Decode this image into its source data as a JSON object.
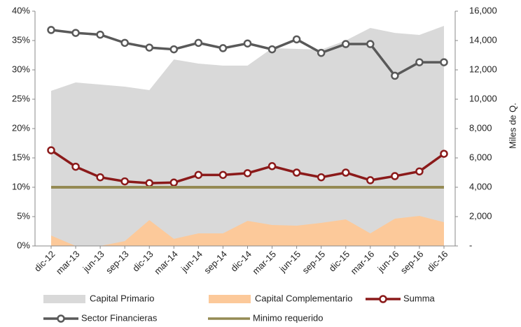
{
  "chart_data": {
    "type": "combo",
    "categories": [
      "dic-12",
      "mar-13",
      "jun-13",
      "sep-13",
      "dic-13",
      "mar-14",
      "jun-14",
      "sep-14",
      "dic-14",
      "mar-15",
      "jun-15",
      "sep-15",
      "dic-15",
      "mar-16",
      "jun-16",
      "sep-16",
      "dic-16"
    ],
    "ylim": [
      0,
      40
    ],
    "yticks": [
      {
        "value": 0,
        "label": "0%"
      },
      {
        "value": 5,
        "label": "5%"
      },
      {
        "value": 10,
        "label": "10%"
      },
      {
        "value": 15,
        "label": "15%"
      },
      {
        "value": 20,
        "label": "20%"
      },
      {
        "value": 25,
        "label": "25%"
      },
      {
        "value": 30,
        "label": "30%"
      },
      {
        "value": 35,
        "label": "35%"
      },
      {
        "value": 40,
        "label": "40%"
      }
    ],
    "y2lim": [
      0,
      16000
    ],
    "y2ticks": [
      {
        "value": 0,
        "label": "-"
      },
      {
        "value": 2000,
        "label": "2,000"
      },
      {
        "value": 4000,
        "label": "4,000"
      },
      {
        "value": 6000,
        "label": "6,000"
      },
      {
        "value": 8000,
        "label": "8,000"
      },
      {
        "value": 10000,
        "label": "10,000"
      },
      {
        "value": 12000,
        "label": "12,000"
      },
      {
        "value": 14000,
        "label": "14,000"
      },
      {
        "value": 16000,
        "label": "16,000"
      }
    ],
    "y2label": "Miles de Q.",
    "series": [
      {
        "name": "Capital Primario",
        "type": "area",
        "axis": "y2",
        "color": "#d9d9d9",
        "values": [
          10570,
          11140,
          11000,
          10860,
          10620,
          12710,
          12430,
          12290,
          12290,
          13480,
          13430,
          13380,
          14000,
          14860,
          14520,
          14380,
          15000
        ]
      },
      {
        "name": "Capital Complementario",
        "type": "area",
        "axis": "y2",
        "color": "#fcc99a",
        "values": [
          710,
          0,
          0,
          330,
          1760,
          480,
          860,
          860,
          1710,
          1430,
          1380,
          1570,
          1810,
          860,
          1860,
          2050,
          1620
        ]
      },
      {
        "name": "Summa",
        "type": "line",
        "marker": true,
        "color": "#8b1a1a",
        "values": [
          16.3,
          13.5,
          11.7,
          11.0,
          10.7,
          10.8,
          12.1,
          12.1,
          12.4,
          13.6,
          12.5,
          11.7,
          12.5,
          11.2,
          11.9,
          12.7,
          15.7
        ]
      },
      {
        "name": "Sector Financieras",
        "type": "line",
        "marker": true,
        "color": "#595959",
        "values": [
          36.8,
          36.3,
          36.0,
          34.6,
          33.8,
          33.5,
          34.6,
          33.7,
          34.5,
          33.5,
          35.2,
          32.9,
          34.4,
          34.4,
          29.0,
          31.3,
          31.3
        ]
      },
      {
        "name": "Minimo requerido",
        "type": "line",
        "marker": false,
        "color": "#948a54",
        "values": [
          10,
          10,
          10,
          10,
          10,
          10,
          10,
          10,
          10,
          10,
          10,
          10,
          10,
          10,
          10,
          10,
          10
        ]
      }
    ]
  }
}
